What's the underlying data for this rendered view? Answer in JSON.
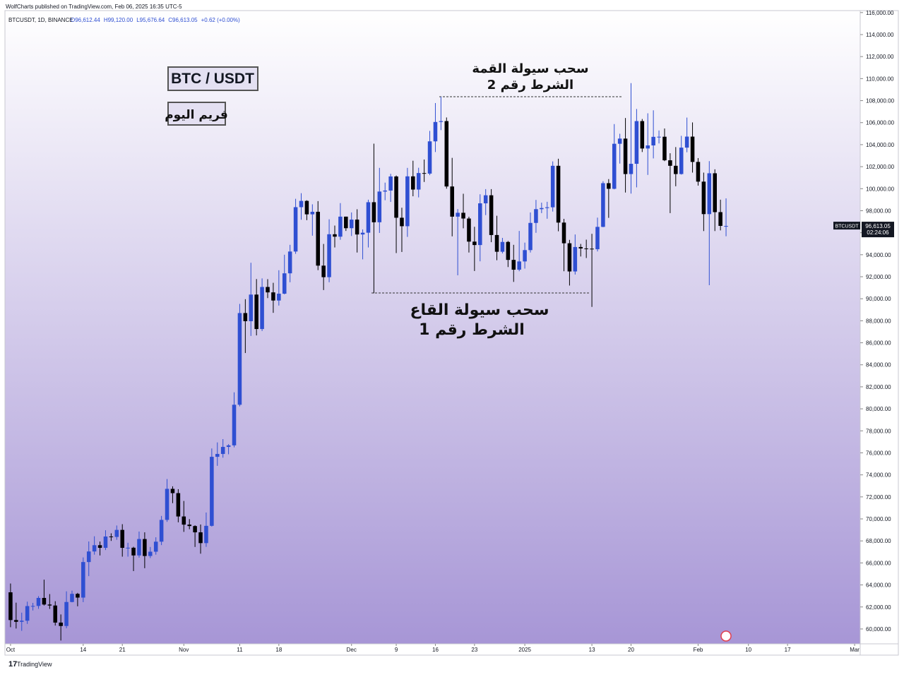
{
  "header": {
    "published": "WolfCharts published on TradingView.com, Feb 06, 2025 16:35 UTC-5"
  },
  "chart_data": {
    "type": "candlestick",
    "symbol_line": "BTCUSDT, 1D, BINANCE",
    "ohlc_labels": [
      "O96,612.44",
      "H99,120.00",
      "L95,676.64",
      "C96,613.05",
      "+0.62 (+0.00%)"
    ],
    "x": [
      "2024-10-01",
      "2024-10-02",
      "2024-10-03",
      "2024-10-04",
      "2024-10-05",
      "2024-10-06",
      "2024-10-07",
      "2024-10-08",
      "2024-10-09",
      "2024-10-10",
      "2024-10-11",
      "2024-10-12",
      "2024-10-13",
      "2024-10-14",
      "2024-10-15",
      "2024-10-16",
      "2024-10-17",
      "2024-10-18",
      "2024-10-19",
      "2024-10-20",
      "2024-10-21",
      "2024-10-22",
      "2024-10-23",
      "2024-10-24",
      "2024-10-25",
      "2024-10-26",
      "2024-10-27",
      "2024-10-28",
      "2024-10-29",
      "2024-10-30",
      "2024-10-31",
      "2024-11-01",
      "2024-11-02",
      "2024-11-03",
      "2024-11-04",
      "2024-11-05",
      "2024-11-06",
      "2024-11-07",
      "2024-11-08",
      "2024-11-09",
      "2024-11-10",
      "2024-11-11",
      "2024-11-12",
      "2024-11-13",
      "2024-11-14",
      "2024-11-15",
      "2024-11-16",
      "2024-11-17",
      "2024-11-18",
      "2024-11-19",
      "2024-11-20",
      "2024-11-21",
      "2024-11-22",
      "2024-11-23",
      "2024-11-24",
      "2024-11-25",
      "2024-11-26",
      "2024-11-27",
      "2024-11-28",
      "2024-11-29",
      "2024-11-30",
      "2024-12-01",
      "2024-12-02",
      "2024-12-03",
      "2024-12-04",
      "2024-12-05",
      "2024-12-06",
      "2024-12-07",
      "2024-12-08",
      "2024-12-09",
      "2024-12-10",
      "2024-12-11",
      "2024-12-12",
      "2024-12-13",
      "2024-12-14",
      "2024-12-15",
      "2024-12-16",
      "2024-12-17",
      "2024-12-18",
      "2024-12-19",
      "2024-12-20",
      "2024-12-21",
      "2024-12-22",
      "2024-12-23",
      "2024-12-24",
      "2024-12-25",
      "2024-12-26",
      "2024-12-27",
      "2024-12-28",
      "2024-12-29",
      "2024-12-30",
      "2024-12-31",
      "2025-01-01",
      "2025-01-02",
      "2025-01-03",
      "2025-01-04",
      "2025-01-05",
      "2025-01-06",
      "2025-01-07",
      "2025-01-08",
      "2025-01-09",
      "2025-01-10",
      "2025-01-11",
      "2025-01-12",
      "2025-01-13",
      "2025-01-14",
      "2025-01-15",
      "2025-01-16",
      "2025-01-17",
      "2025-01-18",
      "2025-01-19",
      "2025-01-20",
      "2025-01-21",
      "2025-01-22",
      "2025-01-23",
      "2025-01-24",
      "2025-01-25",
      "2025-01-26",
      "2025-01-27",
      "2025-01-28",
      "2025-01-29",
      "2025-01-30",
      "2025-01-31",
      "2025-02-01",
      "2025-02-02",
      "2025-02-03",
      "2025-02-04",
      "2025-02-05",
      "2025-02-06"
    ],
    "series": [
      {
        "name": "BTCUSDT",
        "up_color": "#2f4fd2",
        "down_color": "#000000",
        "values": [
          [
            63330,
            64130,
            60160,
            60810
          ],
          [
            60810,
            62390,
            60040,
            60650
          ],
          [
            60650,
            61480,
            59830,
            60750
          ],
          [
            60750,
            62480,
            60460,
            62080
          ],
          [
            62080,
            62370,
            61680,
            62090
          ],
          [
            62090,
            62980,
            61830,
            62820
          ],
          [
            62820,
            64480,
            62130,
            62220
          ],
          [
            62220,
            63170,
            61820,
            62130
          ],
          [
            62130,
            62520,
            60310,
            60580
          ],
          [
            60580,
            61320,
            58950,
            60270
          ],
          [
            60270,
            63420,
            60060,
            62450
          ],
          [
            62450,
            63480,
            62420,
            63190
          ],
          [
            63190,
            63280,
            62060,
            62850
          ],
          [
            62850,
            66500,
            62440,
            66080
          ],
          [
            66080,
            67950,
            64800,
            67040
          ],
          [
            67040,
            68420,
            66750,
            67610
          ],
          [
            67610,
            67940,
            66680,
            67370
          ],
          [
            67370,
            68970,
            67170,
            68400
          ],
          [
            68400,
            68690,
            68000,
            68360
          ],
          [
            68360,
            69400,
            68100,
            69000
          ],
          [
            69000,
            69520,
            66570,
            67370
          ],
          [
            67370,
            67830,
            66570,
            67380
          ],
          [
            67380,
            67470,
            65260,
            66680
          ],
          [
            66680,
            68850,
            66480,
            68170
          ],
          [
            68170,
            68780,
            65520,
            66630
          ],
          [
            66630,
            67450,
            66440,
            67020
          ],
          [
            67020,
            68330,
            66750,
            67930
          ],
          [
            67930,
            70270,
            67620,
            69910
          ],
          [
            69910,
            73620,
            69730,
            72730
          ],
          [
            72730,
            72960,
            71430,
            72340
          ],
          [
            72340,
            72700,
            69690,
            70220
          ],
          [
            70220,
            71630,
            68820,
            69480
          ],
          [
            69480,
            69980,
            69060,
            69350
          ],
          [
            69350,
            69420,
            67450,
            68780
          ],
          [
            68780,
            69490,
            66840,
            67800
          ],
          [
            67800,
            70580,
            67460,
            69370
          ],
          [
            69370,
            76400,
            69300,
            75640
          ],
          [
            75640,
            76950,
            74820,
            75900
          ],
          [
            75900,
            77250,
            75560,
            76540
          ],
          [
            76540,
            76790,
            75870,
            76680
          ],
          [
            76680,
            81500,
            76500,
            80370
          ],
          [
            80370,
            89530,
            80220,
            88700
          ],
          [
            88700,
            89960,
            85070,
            87960
          ],
          [
            87960,
            93270,
            86620,
            90380
          ],
          [
            90380,
            91790,
            86670,
            87250
          ],
          [
            87250,
            91850,
            87070,
            91070
          ],
          [
            91070,
            91780,
            90060,
            90580
          ],
          [
            90580,
            91450,
            88720,
            89840
          ],
          [
            89840,
            92590,
            89380,
            90460
          ],
          [
            90460,
            94000,
            90400,
            92310
          ],
          [
            92310,
            94900,
            91500,
            94290
          ],
          [
            94290,
            99080,
            94080,
            98320
          ],
          [
            98320,
            99590,
            97180,
            98890
          ],
          [
            98890,
            98950,
            97140,
            97670
          ],
          [
            97670,
            98580,
            95730,
            97900
          ],
          [
            97900,
            98870,
            92600,
            93010
          ],
          [
            93010,
            94980,
            90790,
            91960
          ],
          [
            91960,
            97220,
            91500,
            95860
          ],
          [
            95860,
            96650,
            94660,
            95640
          ],
          [
            95640,
            98690,
            95360,
            97460
          ],
          [
            97460,
            97460,
            96160,
            96410
          ],
          [
            96410,
            97840,
            95700,
            97190
          ],
          [
            97190,
            98130,
            94200,
            95840
          ],
          [
            95840,
            96300,
            93580,
            96000
          ],
          [
            96000,
            99000,
            94660,
            98770
          ],
          [
            98770,
            104090,
            90500,
            96950
          ],
          [
            96950,
            101890,
            95980,
            99740
          ],
          [
            99740,
            100550,
            98950,
            99830
          ],
          [
            99830,
            101350,
            98800,
            101110
          ],
          [
            101110,
            101200,
            94150,
            97360
          ],
          [
            97360,
            98270,
            94250,
            96590
          ],
          [
            96590,
            101890,
            95620,
            101120
          ],
          [
            101120,
            102540,
            99310,
            99920
          ],
          [
            99920,
            101900,
            99210,
            101420
          ],
          [
            101420,
            102650,
            100610,
            101370
          ],
          [
            101370,
            105250,
            101230,
            104300
          ],
          [
            104300,
            107780,
            103330,
            106060
          ],
          [
            106060,
            108350,
            105320,
            106140
          ],
          [
            106140,
            106470,
            100000,
            100200
          ],
          [
            100200,
            102800,
            95670,
            97460
          ],
          [
            97460,
            98150,
            92130,
            97810
          ],
          [
            97810,
            99540,
            96400,
            97290
          ],
          [
            97290,
            97450,
            94200,
            95190
          ],
          [
            95190,
            96540,
            92520,
            94880
          ],
          [
            94880,
            99490,
            93400,
            98670
          ],
          [
            98670,
            99960,
            97600,
            99400
          ],
          [
            99400,
            99960,
            95140,
            95790
          ],
          [
            95790,
            97540,
            93500,
            94270
          ],
          [
            94270,
            95530,
            94120,
            95160
          ],
          [
            95160,
            95250,
            92880,
            93530
          ],
          [
            93530,
            94900,
            91530,
            92640
          ],
          [
            92640,
            96160,
            92500,
            93390
          ],
          [
            93390,
            95100,
            92740,
            94420
          ],
          [
            94420,
            97840,
            94200,
            96890
          ],
          [
            96890,
            98980,
            95990,
            98140
          ],
          [
            98140,
            98730,
            97780,
            98240
          ],
          [
            98240,
            98810,
            97270,
            98310
          ],
          [
            98310,
            102480,
            97920,
            102080
          ],
          [
            102080,
            102720,
            96130,
            96920
          ],
          [
            96920,
            97260,
            92500,
            95040
          ],
          [
            95040,
            95350,
            91200,
            92480
          ],
          [
            92480,
            95840,
            92200,
            94700
          ],
          [
            94700,
            94980,
            93840,
            94570
          ],
          [
            94570,
            95370,
            93700,
            94550
          ],
          [
            94550,
            95900,
            89260,
            94500
          ],
          [
            94500,
            97370,
            94300,
            96530
          ],
          [
            96530,
            100680,
            96500,
            100500
          ],
          [
            100500,
            100870,
            97350,
            99990
          ],
          [
            99990,
            105870,
            99940,
            104080
          ],
          [
            104080,
            104990,
            102280,
            104550
          ],
          [
            104550,
            106420,
            99650,
            101330
          ],
          [
            101330,
            109590,
            99550,
            102260
          ],
          [
            102260,
            107240,
            100120,
            106140
          ],
          [
            106140,
            106330,
            103330,
            103650
          ],
          [
            103650,
            106850,
            101250,
            103930
          ],
          [
            103930,
            107120,
            102750,
            104710
          ],
          [
            104710,
            105290,
            104110,
            104720
          ],
          [
            104720,
            105470,
            102500,
            102580
          ],
          [
            102580,
            103220,
            97780,
            102080
          ],
          [
            102080,
            103780,
            100220,
            101330
          ],
          [
            101330,
            104800,
            101280,
            103730
          ],
          [
            103730,
            106460,
            103310,
            104730
          ],
          [
            104730,
            106020,
            101460,
            102430
          ],
          [
            102430,
            102780,
            100280,
            100640
          ],
          [
            100640,
            101460,
            96150,
            97690
          ],
          [
            97690,
            102500,
            91230,
            101400
          ],
          [
            101400,
            101760,
            96150,
            97870
          ],
          [
            97870,
            99000,
            96210,
            96620
          ],
          [
            96612.44,
            99120,
            95676.64,
            96613.05
          ]
        ]
      }
    ],
    "xlim": [
      "2024-09-30",
      "2025-03-02"
    ],
    "ylim": [
      58650,
      116180
    ],
    "yticks": [
      {
        "value": 60000,
        "label": "60,000.00"
      },
      {
        "value": 62000,
        "label": "62,000.00"
      },
      {
        "value": 64000,
        "label": "64,000.00"
      },
      {
        "value": 66000,
        "label": "66,000.00"
      },
      {
        "value": 68000,
        "label": "68,000.00"
      },
      {
        "value": 70000,
        "label": "70,000.00"
      },
      {
        "value": 72000,
        "label": "72,000.00"
      },
      {
        "value": 74000,
        "label": "74,000.00"
      },
      {
        "value": 76000,
        "label": "76,000.00"
      },
      {
        "value": 78000,
        "label": "78,000.00"
      },
      {
        "value": 80000,
        "label": "80,000.00"
      },
      {
        "value": 82000,
        "label": "82,000.00"
      },
      {
        "value": 84000,
        "label": "84,000.00"
      },
      {
        "value": 86000,
        "label": "86,000.00"
      },
      {
        "value": 88000,
        "label": "88,000.00"
      },
      {
        "value": 90000,
        "label": "90,000.00"
      },
      {
        "value": 92000,
        "label": "92,000.00"
      },
      {
        "value": 94000,
        "label": "94,000.00"
      },
      {
        "value": 96000,
        "label": "96,000.00"
      },
      {
        "value": 98000,
        "label": "98,000.00"
      },
      {
        "value": 100000,
        "label": "100,000.00"
      },
      {
        "value": 102000,
        "label": "102,000.00"
      },
      {
        "value": 104000,
        "label": "104,000.00"
      },
      {
        "value": 106000,
        "label": "106,000.00"
      },
      {
        "value": 108000,
        "label": "108,000.00"
      },
      {
        "value": 110000,
        "label": "110,000.00"
      },
      {
        "value": 112000,
        "label": "112,000.00"
      },
      {
        "value": 114000,
        "label": "114,000.00"
      },
      {
        "value": 116000,
        "label": "116,000.00"
      }
    ],
    "xticks": [
      {
        "value": "2024-10-01",
        "label": "Oct"
      },
      {
        "value": "2024-10-14",
        "label": "14"
      },
      {
        "value": "2024-10-21",
        "label": "21"
      },
      {
        "value": "2024-11-01",
        "label": "Nov"
      },
      {
        "value": "2024-11-11",
        "label": "11"
      },
      {
        "value": "2024-11-18",
        "label": "18"
      },
      {
        "value": "2024-12-01",
        "label": "Dec"
      },
      {
        "value": "2024-12-09",
        "label": "9"
      },
      {
        "value": "2024-12-16",
        "label": "16"
      },
      {
        "value": "2024-12-23",
        "label": "23"
      },
      {
        "value": "2025-01-01",
        "label": "2025"
      },
      {
        "value": "2025-01-13",
        "label": "13"
      },
      {
        "value": "2025-01-20",
        "label": "20"
      },
      {
        "value": "2025-02-01",
        "label": "Feb"
      },
      {
        "value": "2025-02-10",
        "label": "10"
      },
      {
        "value": "2025-02-17",
        "label": "17"
      },
      {
        "value": "2025-03-01",
        "label": "Mar"
      }
    ],
    "last_price_label": "96,613.05",
    "countdown": "02:24:06",
    "annotations": {
      "pair_box": "BTC / USDT",
      "timeframe_box": "فريم اليوم",
      "top_title": "سحب سيولة القمة",
      "top_condition": "الشرط رقم 2",
      "bottom_title": "سحب سيولة القاع",
      "bottom_condition": "الشرط رقم 1"
    }
  },
  "footer": {
    "brand": "TradingView"
  }
}
